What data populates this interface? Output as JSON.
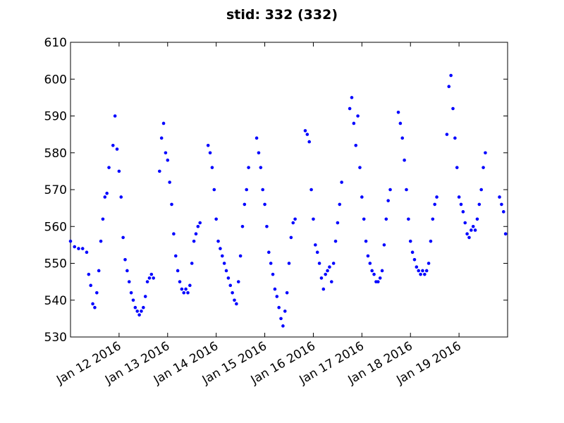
{
  "chart_data": {
    "type": "scatter",
    "title": "stid: 332 (332)",
    "xlabel": "",
    "ylabel": "",
    "ylim": [
      530,
      610
    ],
    "y_ticks": [
      530,
      540,
      550,
      560,
      570,
      580,
      590,
      600,
      610
    ],
    "xlim": [
      "2016-01-11 00:00",
      "2016-01-20 00:00"
    ],
    "x_ticks": [
      "2016-01-12",
      "2016-01-13",
      "2016-01-14",
      "2016-01-15",
      "2016-01-16",
      "2016-01-17",
      "2016-01-18",
      "2016-01-19"
    ],
    "x_tick_labels": [
      "Jan 12 2016",
      "Jan 13 2016",
      "Jan 14 2016",
      "Jan 15 2016",
      "Jan 16 2016",
      "Jan 17 2016",
      "Jan 18 2016",
      "Jan 19 2016"
    ],
    "grid": false,
    "marker_color": "#0000ff",
    "series": [
      {
        "values": [
          [
            "2016-01-11 00:00",
            556
          ],
          [
            "2016-01-11 02:00",
            554.5
          ],
          [
            "2016-01-11 04:00",
            554
          ],
          [
            "2016-01-11 06:00",
            554
          ],
          [
            "2016-01-11 08:00",
            553
          ],
          [
            "2016-01-11 09:00",
            547
          ],
          [
            "2016-01-11 10:00",
            544
          ],
          [
            "2016-01-11 11:00",
            539
          ],
          [
            "2016-01-11 12:00",
            538
          ],
          [
            "2016-01-11 13:00",
            542
          ],
          [
            "2016-01-11 14:00",
            548
          ],
          [
            "2016-01-11 15:00",
            556
          ],
          [
            "2016-01-11 16:00",
            562
          ],
          [
            "2016-01-11 17:00",
            568
          ],
          [
            "2016-01-11 18:00",
            569
          ],
          [
            "2016-01-11 19:00",
            576
          ],
          [
            "2016-01-11 21:00",
            582
          ],
          [
            "2016-01-11 22:00",
            590
          ],
          [
            "2016-01-11 23:00",
            581
          ],
          [
            "2016-01-12 00:00",
            575
          ],
          [
            "2016-01-12 01:00",
            568
          ],
          [
            "2016-01-12 02:00",
            557
          ],
          [
            "2016-01-12 03:00",
            551
          ],
          [
            "2016-01-12 04:00",
            548
          ],
          [
            "2016-01-12 05:00",
            545
          ],
          [
            "2016-01-12 06:00",
            542
          ],
          [
            "2016-01-12 07:00",
            540
          ],
          [
            "2016-01-12 08:00",
            538
          ],
          [
            "2016-01-12 09:00",
            537
          ],
          [
            "2016-01-12 10:00",
            536
          ],
          [
            "2016-01-12 11:00",
            537
          ],
          [
            "2016-01-12 12:00",
            538
          ],
          [
            "2016-01-12 13:00",
            541
          ],
          [
            "2016-01-12 14:00",
            545
          ],
          [
            "2016-01-12 15:00",
            546
          ],
          [
            "2016-01-12 16:00",
            547
          ],
          [
            "2016-01-12 17:00",
            546
          ],
          [
            "2016-01-12 20:00",
            575
          ],
          [
            "2016-01-12 21:00",
            584
          ],
          [
            "2016-01-12 22:00",
            588
          ],
          [
            "2016-01-12 23:00",
            580
          ],
          [
            "2016-01-13 00:00",
            578
          ],
          [
            "2016-01-13 01:00",
            572
          ],
          [
            "2016-01-13 02:00",
            566
          ],
          [
            "2016-01-13 03:00",
            558
          ],
          [
            "2016-01-13 04:00",
            552
          ],
          [
            "2016-01-13 05:00",
            548
          ],
          [
            "2016-01-13 06:00",
            545
          ],
          [
            "2016-01-13 07:00",
            543
          ],
          [
            "2016-01-13 08:00",
            542
          ],
          [
            "2016-01-13 09:00",
            543
          ],
          [
            "2016-01-13 10:00",
            542
          ],
          [
            "2016-01-13 11:00",
            544
          ],
          [
            "2016-01-13 12:00",
            550
          ],
          [
            "2016-01-13 13:00",
            556
          ],
          [
            "2016-01-13 14:00",
            558
          ],
          [
            "2016-01-13 15:00",
            560
          ],
          [
            "2016-01-13 16:00",
            561
          ],
          [
            "2016-01-13 20:00",
            582
          ],
          [
            "2016-01-13 21:00",
            580
          ],
          [
            "2016-01-13 22:00",
            576
          ],
          [
            "2016-01-13 23:00",
            570
          ],
          [
            "2016-01-14 00:00",
            562
          ],
          [
            "2016-01-14 01:00",
            556
          ],
          [
            "2016-01-14 02:00",
            554
          ],
          [
            "2016-01-14 03:00",
            552
          ],
          [
            "2016-01-14 04:00",
            550
          ],
          [
            "2016-01-14 05:00",
            548
          ],
          [
            "2016-01-14 06:00",
            546
          ],
          [
            "2016-01-14 07:00",
            544
          ],
          [
            "2016-01-14 08:00",
            542
          ],
          [
            "2016-01-14 09:00",
            540
          ],
          [
            "2016-01-14 10:00",
            539
          ],
          [
            "2016-01-14 11:00",
            545
          ],
          [
            "2016-01-14 12:00",
            552
          ],
          [
            "2016-01-14 13:00",
            560
          ],
          [
            "2016-01-14 14:00",
            566
          ],
          [
            "2016-01-14 15:00",
            570
          ],
          [
            "2016-01-14 16:00",
            576
          ],
          [
            "2016-01-14 20:00",
            584
          ],
          [
            "2016-01-14 21:00",
            580
          ],
          [
            "2016-01-14 22:00",
            576
          ],
          [
            "2016-01-14 23:00",
            570
          ],
          [
            "2016-01-15 00:00",
            566
          ],
          [
            "2016-01-15 01:00",
            560
          ],
          [
            "2016-01-15 02:00",
            553
          ],
          [
            "2016-01-15 03:00",
            550
          ],
          [
            "2016-01-15 04:00",
            547
          ],
          [
            "2016-01-15 05:00",
            543
          ],
          [
            "2016-01-15 06:00",
            541
          ],
          [
            "2016-01-15 07:00",
            538
          ],
          [
            "2016-01-15 08:00",
            535
          ],
          [
            "2016-01-15 09:00",
            533
          ],
          [
            "2016-01-15 10:00",
            537
          ],
          [
            "2016-01-15 11:00",
            542
          ],
          [
            "2016-01-15 12:00",
            550
          ],
          [
            "2016-01-15 13:00",
            557
          ],
          [
            "2016-01-15 14:00",
            561
          ],
          [
            "2016-01-15 15:00",
            562
          ],
          [
            "2016-01-15 20:00",
            586
          ],
          [
            "2016-01-15 21:00",
            585
          ],
          [
            "2016-01-15 22:00",
            583
          ],
          [
            "2016-01-15 23:00",
            570
          ],
          [
            "2016-01-16 00:00",
            562
          ],
          [
            "2016-01-16 01:00",
            555
          ],
          [
            "2016-01-16 02:00",
            553
          ],
          [
            "2016-01-16 03:00",
            550
          ],
          [
            "2016-01-16 04:00",
            546
          ],
          [
            "2016-01-16 05:00",
            543
          ],
          [
            "2016-01-16 06:00",
            547
          ],
          [
            "2016-01-16 07:00",
            548
          ],
          [
            "2016-01-16 08:00",
            549
          ],
          [
            "2016-01-16 09:00",
            545
          ],
          [
            "2016-01-16 10:00",
            550
          ],
          [
            "2016-01-16 11:00",
            556
          ],
          [
            "2016-01-16 12:00",
            561
          ],
          [
            "2016-01-16 13:00",
            566
          ],
          [
            "2016-01-16 14:00",
            572
          ],
          [
            "2016-01-16 18:00",
            592
          ],
          [
            "2016-01-16 19:00",
            595
          ],
          [
            "2016-01-16 20:00",
            588
          ],
          [
            "2016-01-16 21:00",
            582
          ],
          [
            "2016-01-16 22:00",
            590
          ],
          [
            "2016-01-16 23:00",
            576
          ],
          [
            "2016-01-17 00:00",
            568
          ],
          [
            "2016-01-17 01:00",
            562
          ],
          [
            "2016-01-17 02:00",
            556
          ],
          [
            "2016-01-17 03:00",
            552
          ],
          [
            "2016-01-17 04:00",
            550
          ],
          [
            "2016-01-17 05:00",
            548
          ],
          [
            "2016-01-17 06:00",
            547
          ],
          [
            "2016-01-17 07:00",
            545
          ],
          [
            "2016-01-17 08:00",
            545
          ],
          [
            "2016-01-17 09:00",
            546
          ],
          [
            "2016-01-17 10:00",
            548
          ],
          [
            "2016-01-17 11:00",
            555
          ],
          [
            "2016-01-17 12:00",
            562
          ],
          [
            "2016-01-17 13:00",
            567
          ],
          [
            "2016-01-17 14:00",
            570
          ],
          [
            "2016-01-17 18:00",
            591
          ],
          [
            "2016-01-17 19:00",
            588
          ],
          [
            "2016-01-17 20:00",
            584
          ],
          [
            "2016-01-17 21:00",
            578
          ],
          [
            "2016-01-17 22:00",
            570
          ],
          [
            "2016-01-17 23:00",
            562
          ],
          [
            "2016-01-18 00:00",
            556
          ],
          [
            "2016-01-18 01:00",
            553
          ],
          [
            "2016-01-18 02:00",
            551
          ],
          [
            "2016-01-18 03:00",
            549
          ],
          [
            "2016-01-18 04:00",
            548
          ],
          [
            "2016-01-18 05:00",
            547
          ],
          [
            "2016-01-18 06:00",
            548
          ],
          [
            "2016-01-18 07:00",
            547
          ],
          [
            "2016-01-18 08:00",
            548
          ],
          [
            "2016-01-18 09:00",
            550
          ],
          [
            "2016-01-18 10:00",
            556
          ],
          [
            "2016-01-18 11:00",
            562
          ],
          [
            "2016-01-18 12:00",
            566
          ],
          [
            "2016-01-18 13:00",
            568
          ],
          [
            "2016-01-18 18:00",
            585
          ],
          [
            "2016-01-18 19:00",
            598
          ],
          [
            "2016-01-18 20:00",
            601
          ],
          [
            "2016-01-18 21:00",
            592
          ],
          [
            "2016-01-18 22:00",
            584
          ],
          [
            "2016-01-18 23:00",
            576
          ],
          [
            "2016-01-19 00:00",
            568
          ],
          [
            "2016-01-19 01:00",
            566
          ],
          [
            "2016-01-19 02:00",
            564
          ],
          [
            "2016-01-19 03:00",
            561
          ],
          [
            "2016-01-19 04:00",
            558
          ],
          [
            "2016-01-19 05:00",
            557
          ],
          [
            "2016-01-19 06:00",
            559
          ],
          [
            "2016-01-19 07:00",
            560
          ],
          [
            "2016-01-19 08:00",
            559
          ],
          [
            "2016-01-19 09:00",
            562
          ],
          [
            "2016-01-19 10:00",
            566
          ],
          [
            "2016-01-19 11:00",
            570
          ],
          [
            "2016-01-19 12:00",
            576
          ],
          [
            "2016-01-19 13:00",
            580
          ],
          [
            "2016-01-19 20:00",
            568
          ],
          [
            "2016-01-19 21:00",
            566
          ],
          [
            "2016-01-19 22:00",
            564
          ],
          [
            "2016-01-19 23:00",
            558
          ]
        ]
      }
    ]
  }
}
